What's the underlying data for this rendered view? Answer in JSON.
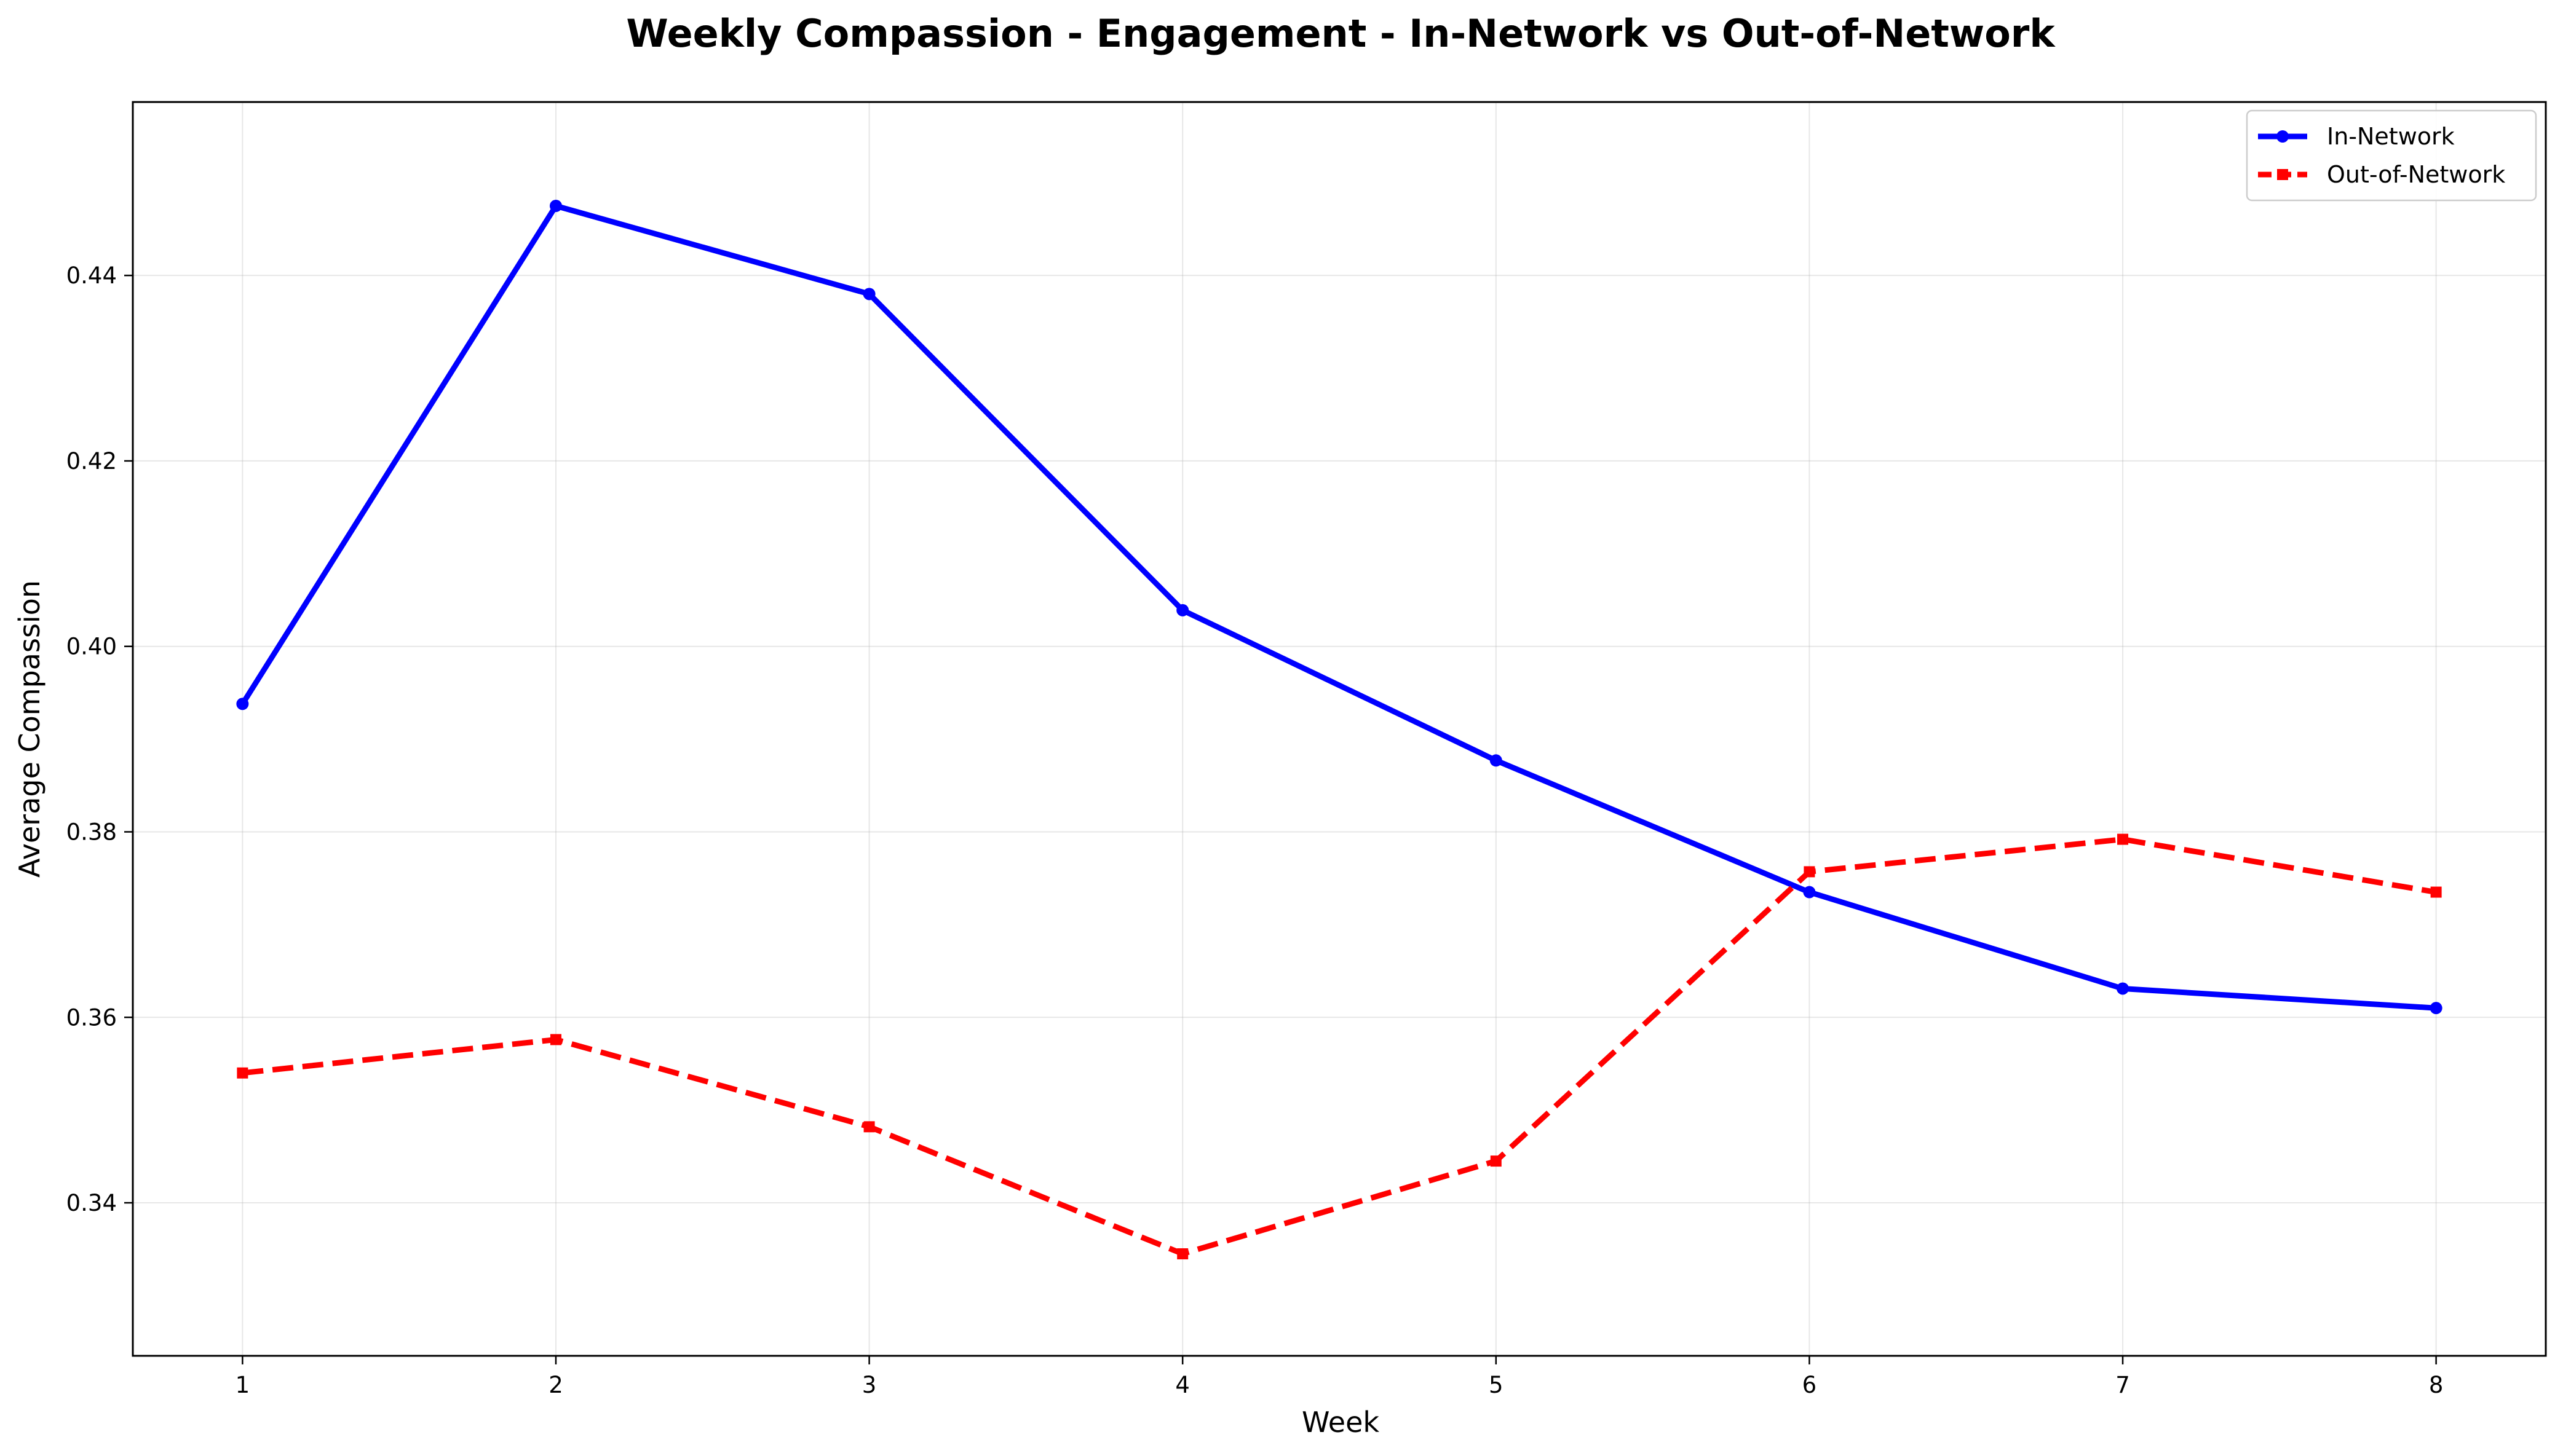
{
  "chart_data": {
    "type": "line",
    "title": "Weekly Compassion - Engagement - In-Network vs Out-of-Network",
    "xlabel": "Week",
    "ylabel": "Average Compassion",
    "x": [
      1,
      2,
      3,
      4,
      5,
      6,
      7,
      8
    ],
    "x_tick_labels": [
      "1",
      "2",
      "3",
      "4",
      "5",
      "6",
      "7",
      "8"
    ],
    "xlim": [
      0.65,
      8.35
    ],
    "ylim": [
      0.3235,
      0.4587
    ],
    "y_ticks": [
      0.34,
      0.36,
      0.38,
      0.4,
      0.42,
      0.44
    ],
    "y_tick_labels": [
      "0.34",
      "0.36",
      "0.38",
      "0.40",
      "0.42",
      "0.44"
    ],
    "grid": true,
    "legend_position": "top-right",
    "series": [
      {
        "name": "In-Network",
        "color": "#0000ff",
        "line_style": "solid",
        "marker": "circle",
        "values": [
          0.3938,
          0.4475,
          0.438,
          0.4039,
          0.3877,
          0.3735,
          0.3631,
          0.361
        ]
      },
      {
        "name": "Out-of-Network",
        "color": "#ff0000",
        "line_style": "dashed",
        "marker": "square",
        "values": [
          0.354,
          0.3576,
          0.3482,
          0.3345,
          0.3445,
          0.3757,
          0.3792,
          0.3735
        ]
      }
    ]
  }
}
